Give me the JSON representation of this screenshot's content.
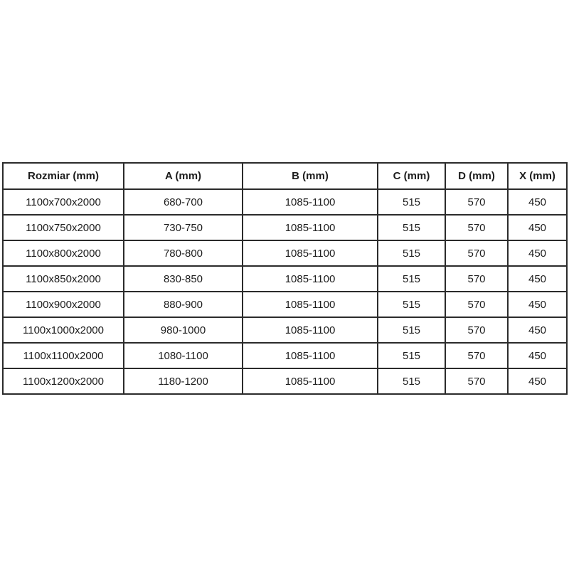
{
  "page": {
    "background_color": "#ffffff",
    "border_color": "#2b2b2b",
    "text_color": "#1c1c1c"
  },
  "chart_data": {
    "type": "table",
    "title": "",
    "columns": [
      "Rozmiar (mm)",
      "A (mm)",
      "B (mm)",
      "C (mm)",
      "D (mm)",
      "X (mm)"
    ],
    "rows": [
      [
        "1100x700x2000",
        "680-700",
        "1085-1100",
        "515",
        "570",
        "450"
      ],
      [
        "1100x750x2000",
        "730-750",
        "1085-1100",
        "515",
        "570",
        "450"
      ],
      [
        "1100x800x2000",
        "780-800",
        "1085-1100",
        "515",
        "570",
        "450"
      ],
      [
        "1100x850x2000",
        "830-850",
        "1085-1100",
        "515",
        "570",
        "450"
      ],
      [
        "1100x900x2000",
        "880-900",
        "1085-1100",
        "515",
        "570",
        "450"
      ],
      [
        "1100x1000x2000",
        "980-1000",
        "1085-1100",
        "515",
        "570",
        "450"
      ],
      [
        "1100x1100x2000",
        "1080-1100",
        "1085-1100",
        "515",
        "570",
        "450"
      ],
      [
        "1100x1200x2000",
        "1180-1200",
        "1085-1100",
        "515",
        "570",
        "450"
      ]
    ]
  }
}
